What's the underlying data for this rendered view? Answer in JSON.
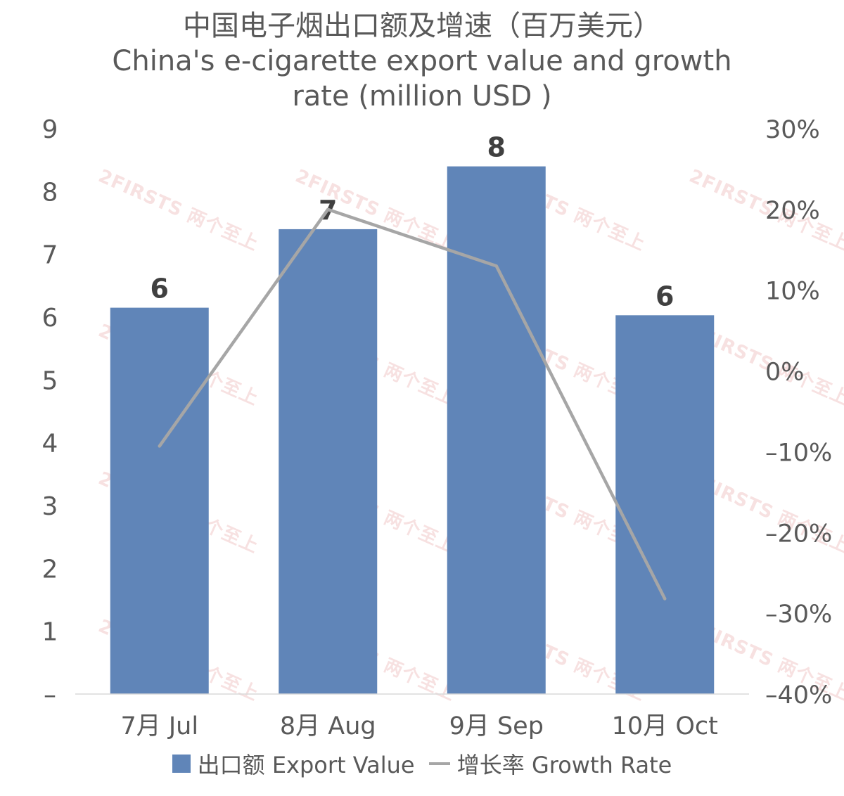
{
  "chart_data": {
    "type": "bar",
    "title": "中国电子烟出口额及增速（百万美元）",
    "subtitle_lines": [
      "China's e-cigarette export value and growth",
      "rate (million USD )"
    ],
    "categories": [
      "7月 Jul",
      "8月 Aug",
      "9月 Sep",
      "10月 Oct"
    ],
    "series": [
      {
        "name": "出口额 Export Value",
        "type": "bar",
        "axis": "left",
        "color": "#6085b8",
        "values": [
          6.15,
          7.4,
          8.4,
          6.03
        ],
        "data_labels": [
          "6",
          "7",
          "8",
          "6"
        ]
      },
      {
        "name": "增长率 Growth Rate",
        "type": "line",
        "axis": "right",
        "color": "#a6a6a6",
        "values": [
          -9.3,
          20.0,
          13.0,
          -28.2
        ]
      }
    ],
    "y_left": {
      "min": 0,
      "max": 9,
      "ticks": [
        0,
        1,
        2,
        3,
        4,
        5,
        6,
        7,
        8,
        9
      ],
      "tick_labels": [
        "–",
        "1",
        "2",
        "3",
        "4",
        "5",
        "6",
        "7",
        "8",
        "9"
      ]
    },
    "y_right": {
      "min": -40,
      "max": 30,
      "unit": "%",
      "ticks": [
        -40,
        -30,
        -20,
        -10,
        0,
        10,
        20,
        30
      ],
      "tick_labels": [
        "–40%",
        "–30%",
        "–20%",
        "–10%",
        "0%",
        "10%",
        "20%",
        "30%"
      ]
    },
    "grid": false,
    "legend_position": "bottom"
  },
  "watermark": {
    "text": "2FIRSTS 两个至上"
  },
  "legend": {
    "bar_label": "出口额 Export Value",
    "line_label": "增长率 Growth Rate"
  }
}
